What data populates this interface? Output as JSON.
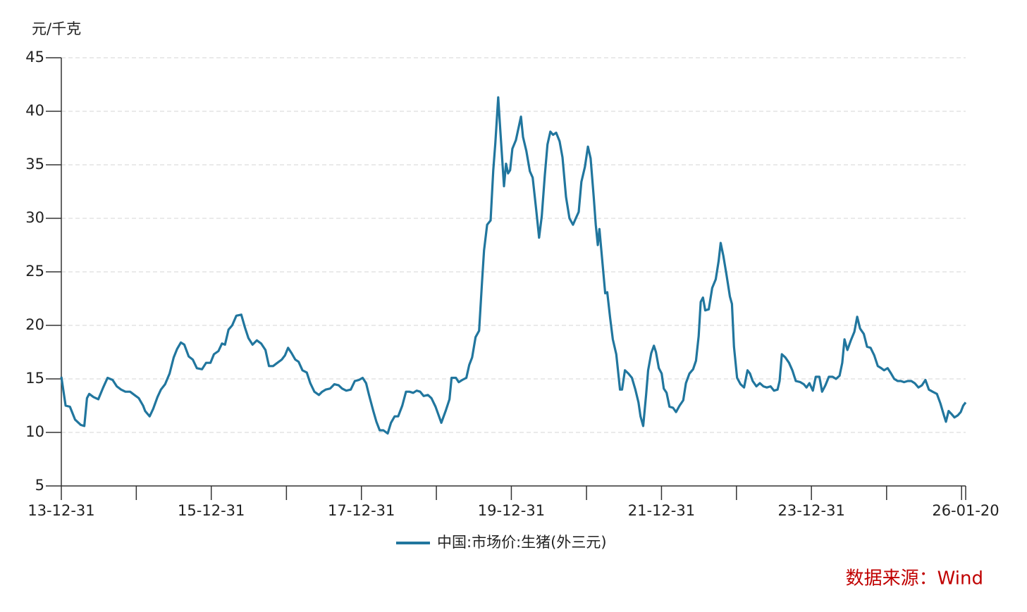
{
  "chart_data": {
    "type": "line",
    "y_label": "元/千克",
    "source": "数据来源：Wind",
    "grid": true,
    "legend": "bottom",
    "ylim": [
      5,
      45
    ],
    "yticks": [
      5,
      10,
      15,
      20,
      25,
      30,
      35,
      40,
      45
    ],
    "xlim": [
      "13-12-31",
      "26-01-20"
    ],
    "xticks": [
      "13-12-31",
      {
        "value": "14-12-31",
        "label": null
      },
      "15-12-31",
      {
        "value": "16-12-31",
        "label": null
      },
      "17-12-31",
      {
        "value": "18-12-31",
        "label": null
      },
      "19-12-31",
      {
        "value": "20-12-31",
        "label": null
      },
      "21-12-31",
      {
        "value": "22-12-31",
        "label": null
      },
      "23-12-31",
      {
        "value": "24-12-31",
        "label": null
      },
      {
        "value": "25-12-31",
        "label": null
      },
      "26-01-20"
    ],
    "x": [
      "13-12-31",
      "14-01-21",
      "14-02-11",
      "14-03-08",
      "14-04-05",
      "14-04-22",
      "14-05-05",
      "14-05-16",
      "14-06-06",
      "14-06-29",
      "14-07-23",
      "14-08-13",
      "14-09-07",
      "14-09-27",
      "14-10-18",
      "14-11-08",
      "14-12-01",
      "14-12-22",
      "15-01-12",
      "15-02-02",
      "15-02-12",
      "15-03-06",
      "15-03-23",
      "15-04-13",
      "15-04-30",
      "15-05-20",
      "15-06-11",
      "15-07-01",
      "15-07-18",
      "15-08-05",
      "15-08-22",
      "15-09-12",
      "15-10-02",
      "15-10-22",
      "15-11-16",
      "15-12-06",
      "15-12-27",
      "16-01-13",
      "16-02-04",
      "16-02-21",
      "16-03-07",
      "16-03-24",
      "16-04-11",
      "16-05-01",
      "16-05-25",
      "16-06-12",
      "16-06-29",
      "16-07-19",
      "16-08-09",
      "16-08-30",
      "16-09-20",
      "16-10-07",
      "16-10-27",
      "16-11-17",
      "16-12-08",
      "16-12-24",
      "17-01-08",
      "17-01-25",
      "17-02-12",
      "17-02-28",
      "17-03-19",
      "17-04-09",
      "17-04-26",
      "17-05-16",
      "17-06-07",
      "17-06-23",
      "17-07-10",
      "17-08-01",
      "17-08-21",
      "17-09-11",
      "17-09-28",
      "17-10-18",
      "17-11-09",
      "17-11-29",
      "17-12-19",
      "18-01-06",
      "18-01-23",
      "18-02-06",
      "18-02-27",
      "18-03-14",
      "18-03-30",
      "18-04-17",
      "18-05-08",
      "18-05-24",
      "18-06-11",
      "18-06-28",
      "18-07-18",
      "18-08-05",
      "18-08-22",
      "18-09-09",
      "18-09-26",
      "18-10-13",
      "18-10-30",
      "18-11-20",
      "18-12-07",
      "18-12-27",
      "19-01-24",
      "19-02-14",
      "19-03-05",
      "19-03-15",
      "19-04-05",
      "19-04-19",
      "19-05-06",
      "19-05-26",
      "19-06-09",
      "19-06-23",
      "19-07-10",
      "19-07-27",
      "19-08-10",
      "19-08-20",
      "19-09-04",
      "19-09-21",
      "19-10-04",
      "19-10-14",
      "19-10-28",
      "19-11-08",
      "19-11-25",
      "19-12-05",
      "19-12-15",
      "19-12-25",
      "20-01-05",
      "20-01-22",
      "20-02-16",
      "20-02-26",
      "20-03-13",
      "20-03-30",
      "20-04-13",
      "20-04-30",
      "20-05-14",
      "20-05-27",
      "20-06-11",
      "20-06-24",
      "20-07-08",
      "20-07-21",
      "20-08-05",
      "20-08-22",
      "20-09-05",
      "20-09-22",
      "20-10-09",
      "20-10-26",
      "20-11-09",
      "20-11-23",
      "20-12-06",
      "20-12-23",
      "21-01-07",
      "21-01-20",
      "21-02-04",
      "21-02-14",
      "21-02-24",
      "21-03-04",
      "21-03-18",
      "21-04-01",
      "21-04-11",
      "21-04-25",
      "21-05-08",
      "21-05-25",
      "21-06-12",
      "21-06-22",
      "21-07-06",
      "21-07-23",
      "21-08-09",
      "21-08-26",
      "21-09-10",
      "21-09-20",
      "21-10-03",
      "21-10-17",
      "21-10-27",
      "21-11-11",
      "21-11-24",
      "21-12-04",
      "21-12-18",
      "22-01-01",
      "22-01-11",
      "22-01-25",
      "22-02-08",
      "22-02-25",
      "22-03-12",
      "22-03-29",
      "22-04-16",
      "22-04-29",
      "22-05-16",
      "22-06-03",
      "22-06-17",
      "22-06-30",
      "22-07-10",
      "22-07-21",
      "22-08-01",
      "22-08-18",
      "22-09-04",
      "22-09-21",
      "22-10-05",
      "22-10-15",
      "22-10-28",
      "22-11-12",
      "22-11-29",
      "22-12-09",
      "22-12-19",
      "23-01-03",
      "23-01-20",
      "23-02-06",
      "23-02-23",
      "23-03-07",
      "23-03-20",
      "23-04-07",
      "23-04-24",
      "23-05-11",
      "23-05-28",
      "23-06-15",
      "23-07-02",
      "23-07-19",
      "23-07-29",
      "23-08-09",
      "23-08-26",
      "23-09-13",
      "23-09-29",
      "23-10-16",
      "23-11-07",
      "23-11-24",
      "23-12-07",
      "23-12-21",
      "24-01-07",
      "24-01-21",
      "24-02-08",
      "24-02-21",
      "24-03-08",
      "24-03-25",
      "24-04-12",
      "24-04-29",
      "24-05-16",
      "24-05-29",
      "24-06-09",
      "24-06-23",
      "24-07-10",
      "24-07-27",
      "24-08-10",
      "24-08-24",
      "24-09-11",
      "24-09-27",
      "24-10-14",
      "24-11-01",
      "24-11-18",
      "24-12-05",
      "24-12-19",
      "25-01-05",
      "25-01-22",
      "25-02-06",
      "25-02-23",
      "25-03-10",
      "25-03-26",
      "25-04-13",
      "25-04-30",
      "25-05-17",
      "25-06-04",
      "25-06-21",
      "25-07-08",
      "25-07-25",
      "25-08-12",
      "25-09-02",
      "25-09-19",
      "25-10-06",
      "25-10-16",
      "25-10-29",
      "25-11-13",
      "25-11-26",
      "25-12-13",
      "25-12-27",
      "26-01-08",
      "26-01-20"
    ],
    "series": [
      {
        "name": "中国:市场价:生猪(外三元)",
        "color": "#21769e",
        "values": [
          15.2,
          12.5,
          12.4,
          11.2,
          10.7,
          10.6,
          13.2,
          13.6,
          13.3,
          13.1,
          14.2,
          15.1,
          14.9,
          14.3,
          14.0,
          13.8,
          13.8,
          13.5,
          13.2,
          12.5,
          12.0,
          11.5,
          12.2,
          13.3,
          14.0,
          14.5,
          15.5,
          17.0,
          17.8,
          18.4,
          18.2,
          17.1,
          16.8,
          16.0,
          15.9,
          16.5,
          16.5,
          17.3,
          17.6,
          18.3,
          18.2,
          19.6,
          20.0,
          20.9,
          21.0,
          19.8,
          18.8,
          18.2,
          18.6,
          18.3,
          17.7,
          16.2,
          16.2,
          16.5,
          16.8,
          17.2,
          17.9,
          17.4,
          16.8,
          16.6,
          15.8,
          15.6,
          14.6,
          13.8,
          13.5,
          13.8,
          14.0,
          14.1,
          14.5,
          14.4,
          14.1,
          13.9,
          14.0,
          14.8,
          14.9,
          15.1,
          14.6,
          13.5,
          12.0,
          11.0,
          10.2,
          10.2,
          9.9,
          10.9,
          11.5,
          11.5,
          12.5,
          13.8,
          13.8,
          13.7,
          13.9,
          13.8,
          13.4,
          13.5,
          13.2,
          12.4,
          10.9,
          12.0,
          13.1,
          15.1,
          15.1,
          14.7,
          14.9,
          15.1,
          16.3,
          17.0,
          18.9,
          19.5,
          24.0,
          27.0,
          29.4,
          29.8,
          34.5,
          37.0,
          41.3,
          38.0,
          33.0,
          35.1,
          34.2,
          34.5,
          36.5,
          37.3,
          39.5,
          37.6,
          36.3,
          34.4,
          33.8,
          30.8,
          28.2,
          30.2,
          34.0,
          36.9,
          38.1,
          37.8,
          38.0,
          37.2,
          35.7,
          32.0,
          30.0,
          29.4,
          30.0,
          30.6,
          33.4,
          34.8,
          36.7,
          35.6,
          32.0,
          29.4,
          27.5,
          29.0,
          26.0,
          23.0,
          23.1,
          20.7,
          18.7,
          17.3,
          14.0,
          14.0,
          15.8,
          15.5,
          15.1,
          14.0,
          12.8,
          11.5,
          10.6,
          13.5,
          15.8,
          17.4,
          18.1,
          17.5,
          16.0,
          15.5,
          14.1,
          13.7,
          12.4,
          12.3,
          11.9,
          12.5,
          13.0,
          14.6,
          15.5,
          15.9,
          16.7,
          19.0,
          22.2,
          22.6,
          21.4,
          21.5,
          23.5,
          24.3,
          26.0,
          27.7,
          26.5,
          24.8,
          22.7,
          22.0,
          18.0,
          15.1,
          14.5,
          14.2,
          15.8,
          15.5,
          14.8,
          14.3,
          14.6,
          14.3,
          14.2,
          14.3,
          13.9,
          14.0,
          14.8,
          17.3,
          17.0,
          16.5,
          15.8,
          14.8,
          14.7,
          14.5,
          14.2,
          14.6,
          13.9,
          15.2,
          15.2,
          13.8,
          14.4,
          15.2,
          15.2,
          15.0,
          15.3,
          16.5,
          18.7,
          17.7,
          18.6,
          19.4,
          20.8,
          19.7,
          19.2,
          18.0,
          17.9,
          17.2,
          16.2,
          16.0,
          15.8,
          16.0,
          15.5,
          15.0,
          14.8,
          14.8,
          14.7,
          14.8,
          14.8,
          14.6,
          14.2,
          14.4,
          14.9,
          14.0,
          13.8,
          13.6,
          12.7,
          11.6,
          11.0,
          12.0,
          11.7,
          11.4,
          11.6,
          11.9,
          12.5,
          12.8
        ]
      }
    ]
  }
}
